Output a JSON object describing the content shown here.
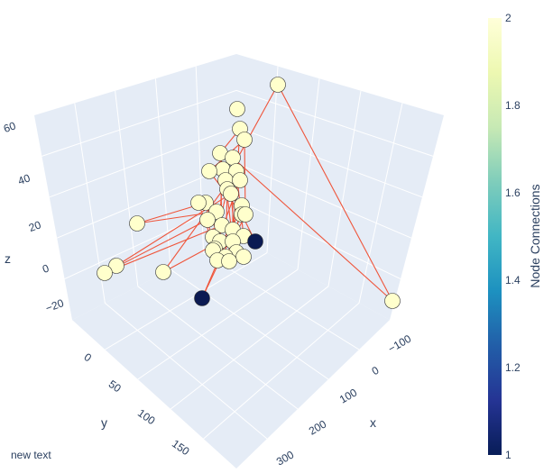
{
  "chart_data": {
    "type": "scatter3d",
    "annotation": "new text",
    "axes": {
      "x": {
        "label": "x",
        "ticks": [
          -100,
          0,
          100,
          200,
          300
        ]
      },
      "y": {
        "label": "y",
        "ticks": [
          0,
          50,
          100,
          150
        ]
      },
      "z": {
        "label": "z",
        "ticks": [
          -20,
          0,
          20,
          40,
          60
        ]
      }
    },
    "colorbar": {
      "title": "Node Connections",
      "ticks": [
        1,
        1.2,
        1.4,
        1.6,
        1.8,
        2
      ],
      "colorscale": [
        "#081d58",
        "#253494",
        "#225ea8",
        "#1d91c0",
        "#41b6c4",
        "#7fcdbb",
        "#c7e9b4",
        "#edf8b1",
        "#ffffd9"
      ]
    },
    "node_color_high": "#ffffcc",
    "node_color_low": "#0b1a52",
    "edge_color": "#ef553b",
    "grid": true,
    "nodes": [
      {
        "id": 0,
        "x": 60,
        "y": 30,
        "z": 55,
        "c": 2
      },
      {
        "id": 1,
        "x": 30,
        "y": 40,
        "z": 45,
        "c": 2
      },
      {
        "id": 2,
        "x": 35,
        "y": 40,
        "z": 40,
        "c": 2
      },
      {
        "id": 3,
        "x": 25,
        "y": 40,
        "z": 42,
        "c": 2
      },
      {
        "id": 4,
        "x": 20,
        "y": 50,
        "z": 38,
        "c": 2
      },
      {
        "id": 5,
        "x": 30,
        "y": 45,
        "z": 35,
        "c": 2
      },
      {
        "id": 6,
        "x": 40,
        "y": 40,
        "z": 30,
        "c": 2
      },
      {
        "id": 7,
        "x": 35,
        "y": 50,
        "z": 30,
        "c": 2
      },
      {
        "id": 8,
        "x": 25,
        "y": 55,
        "z": 25,
        "c": 2
      },
      {
        "id": 9,
        "x": 45,
        "y": 50,
        "z": 25,
        "c": 2
      },
      {
        "id": 10,
        "x": 30,
        "y": 60,
        "z": 18,
        "c": 2
      },
      {
        "id": 11,
        "x": 40,
        "y": 60,
        "z": 15,
        "c": 2
      },
      {
        "id": 12,
        "x": 50,
        "y": 55,
        "z": 10,
        "c": 2
      },
      {
        "id": 13,
        "x": 35,
        "y": 65,
        "z": 8,
        "c": 2
      },
      {
        "id": 14,
        "x": 45,
        "y": 65,
        "z": 5,
        "c": 2
      },
      {
        "id": 15,
        "x": 55,
        "y": 60,
        "z": 2,
        "c": 2
      },
      {
        "id": 16,
        "x": 60,
        "y": 55,
        "z": 0,
        "c": 2
      },
      {
        "id": 17,
        "x": 65,
        "y": 60,
        "z": -3,
        "c": 2
      },
      {
        "id": 18,
        "x": 50,
        "y": 70,
        "z": -5,
        "c": 2
      },
      {
        "id": 19,
        "x": 70,
        "y": 55,
        "z": 8,
        "c": 1
      },
      {
        "id": 20,
        "x": 30,
        "y": 75,
        "z": -10,
        "c": 2
      },
      {
        "id": 21,
        "x": 45,
        "y": 75,
        "z": -12,
        "c": 2
      },
      {
        "id": 22,
        "x": 25,
        "y": 55,
        "z": 12,
        "c": 2
      },
      {
        "id": 23,
        "x": 20,
        "y": 45,
        "z": 20,
        "c": 2
      },
      {
        "id": 24,
        "x": 75,
        "y": 40,
        "z": 28,
        "c": 2
      },
      {
        "id": 25,
        "x": 15,
        "y": 65,
        "z": 5,
        "c": 2
      },
      {
        "id": 26,
        "x": 80,
        "y": 35,
        "z": 45,
        "c": 2
      },
      {
        "id": 27,
        "x": 60,
        "y": 20,
        "z": 60,
        "c": 2
      },
      {
        "id": 28,
        "x": -60,
        "y": 10,
        "z": 70,
        "c": 2
      },
      {
        "id": 29,
        "x": -100,
        "y": 150,
        "z": 30,
        "c": 2
      },
      {
        "id": 30,
        "x": 10,
        "y": 120,
        "z": 10,
        "c": 2
      },
      {
        "id": 31,
        "x": -10,
        "y": 130,
        "z": 5,
        "c": 2
      },
      {
        "id": 32,
        "x": 20,
        "y": 130,
        "z": -10,
        "c": 2
      },
      {
        "id": 33,
        "x": 120,
        "y": 20,
        "z": -30,
        "c": 2
      },
      {
        "id": 34,
        "x": 10,
        "y": 100,
        "z": -10,
        "c": 2
      },
      {
        "id": 35,
        "x": 60,
        "y": 100,
        "z": -30,
        "c": 1
      },
      {
        "id": 36,
        "x": 40,
        "y": 80,
        "z": -15,
        "c": 2
      },
      {
        "id": 37,
        "x": 55,
        "y": 80,
        "z": -18,
        "c": 2
      },
      {
        "id": 38,
        "x": 35,
        "y": 30,
        "z": 50,
        "c": 2
      },
      {
        "id": 39,
        "x": 50,
        "y": 35,
        "z": 40,
        "c": 2
      }
    ],
    "edges": [
      [
        28,
        29
      ],
      [
        28,
        5
      ],
      [
        29,
        2
      ],
      [
        27,
        1
      ],
      [
        27,
        14
      ],
      [
        26,
        3
      ],
      [
        30,
        8
      ],
      [
        30,
        4
      ],
      [
        31,
        22
      ],
      [
        31,
        10
      ],
      [
        32,
        7
      ],
      [
        34,
        13
      ],
      [
        34,
        6
      ],
      [
        35,
        12
      ],
      [
        35,
        9
      ],
      [
        1,
        10
      ],
      [
        2,
        11
      ],
      [
        3,
        12
      ],
      [
        4,
        13
      ],
      [
        5,
        14
      ],
      [
        6,
        15
      ],
      [
        7,
        16
      ],
      [
        8,
        17
      ],
      [
        9,
        18
      ],
      [
        0,
        20
      ],
      [
        0,
        21
      ],
      [
        38,
        36
      ],
      [
        39,
        37
      ],
      [
        22,
        36
      ],
      [
        23,
        37
      ],
      [
        24,
        21
      ],
      [
        25,
        20
      ],
      [
        11,
        16
      ],
      [
        10,
        15
      ],
      [
        12,
        19
      ],
      [
        13,
        17
      ],
      [
        14,
        18
      ],
      [
        0,
        39
      ],
      [
        38,
        1
      ],
      [
        26,
        24
      ]
    ]
  }
}
